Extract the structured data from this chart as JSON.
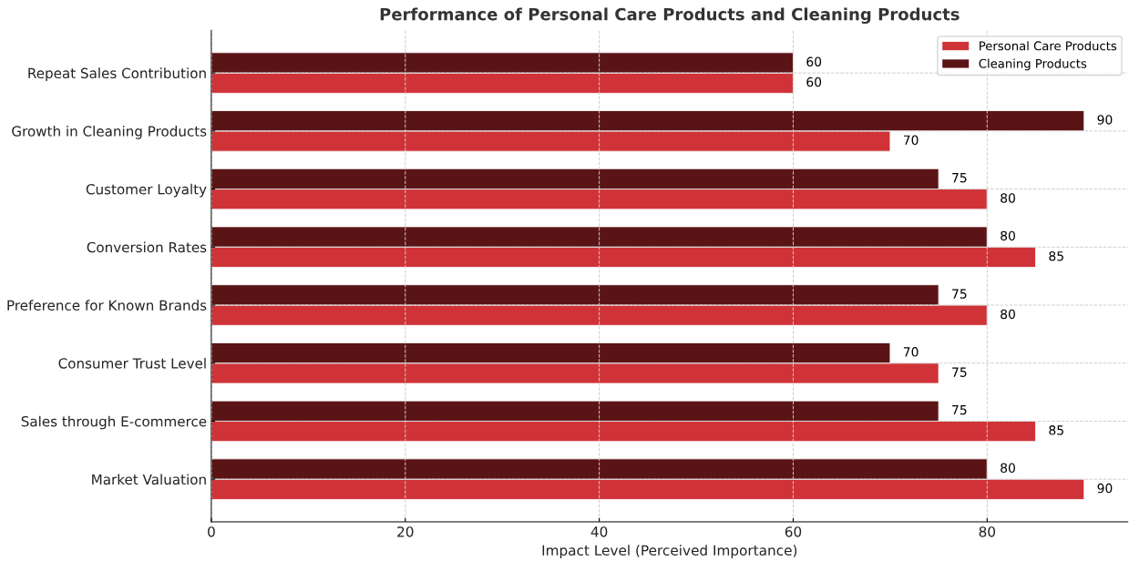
{
  "chart_data": {
    "type": "bar",
    "orientation": "horizontal",
    "title": "Performance of Personal Care Products and Cleaning Products",
    "xlabel": "Impact Level (Perceived Importance)",
    "categories": [
      "Repeat Sales Contribution",
      "Growth in Cleaning Products",
      "Customer Loyalty",
      "Conversion Rates",
      "Preference for Known Brands",
      "Consumer Trust Level",
      "Sales through E-commerce",
      "Market Valuation"
    ],
    "series": [
      {
        "name": "Personal Care Products",
        "color": "#cf3338",
        "values": [
          60,
          70,
          80,
          85,
          80,
          75,
          85,
          90
        ]
      },
      {
        "name": "Cleaning Products",
        "color": "#5a1416",
        "values": [
          60,
          90,
          75,
          80,
          75,
          70,
          75,
          80
        ]
      }
    ],
    "xlim": [
      0,
      94.5
    ],
    "xticks": [
      0,
      20,
      40,
      60,
      80
    ],
    "grid": true,
    "legend": "top right",
    "data_labels": true
  }
}
